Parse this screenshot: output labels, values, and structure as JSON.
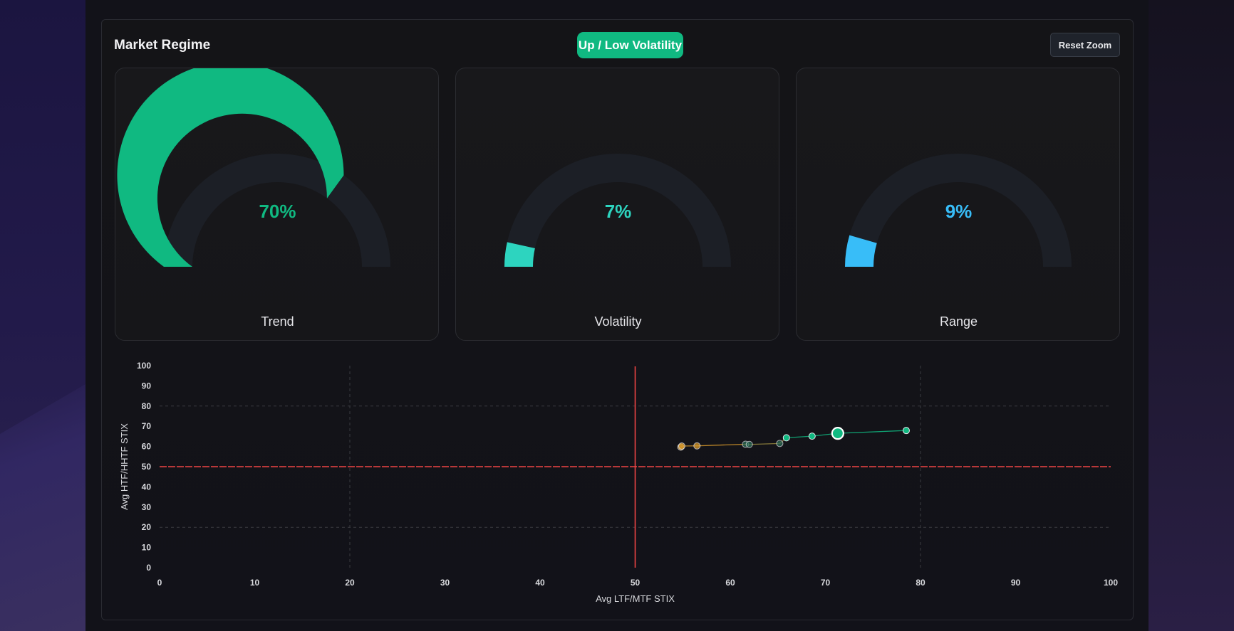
{
  "panel": {
    "title": "Market Regime",
    "regime_badge": "Up / Low Volatility",
    "reset_zoom_label": "Reset Zoom"
  },
  "gauges": [
    {
      "label": "Trend",
      "value": 70,
      "display": "70%",
      "color": "#10b981",
      "text_color": "#10b981"
    },
    {
      "label": "Volatility",
      "value": 7,
      "display": "7%",
      "color": "#2dd4bf",
      "text_color": "#2dd4bf"
    },
    {
      "label": "Range",
      "value": 9,
      "display": "9%",
      "color": "#38bdf8",
      "text_color": "#38bdf8"
    }
  ],
  "colors": {
    "gauge_track": "#1c1f26",
    "threshold_line": "#ef4444",
    "grid": "#3a3b40",
    "trail_early": "#d99a2b",
    "trail_late": "#10b981"
  },
  "chart_data": {
    "type": "scatter",
    "xlabel": "Avg LTF/MTF STIX",
    "ylabel": "Avg HTF/HHTF STIX",
    "xlim": [
      0,
      100
    ],
    "ylim": [
      0,
      100
    ],
    "x_ticks": [
      "0",
      "10",
      "20",
      "30",
      "40",
      "50",
      "60",
      "70",
      "80",
      "90",
      "100"
    ],
    "y_ticks": [
      "0",
      "10",
      "20",
      "30",
      "40",
      "50",
      "60",
      "70",
      "80",
      "90",
      "100"
    ],
    "x_gridlines": [
      20,
      80
    ],
    "y_gridlines": [
      20,
      80
    ],
    "threshold_x": 50,
    "threshold_y": 50,
    "series": [
      {
        "points": [
          {
            "x": 54.8,
            "y": 59.7,
            "tone": "early"
          },
          {
            "x": 54.9,
            "y": 60.2,
            "tone": "early"
          },
          {
            "x": 56.5,
            "y": 60.3,
            "tone": "early"
          },
          {
            "x": 61.6,
            "y": 61.1,
            "tone": "mid"
          },
          {
            "x": 62.0,
            "y": 61.0,
            "tone": "mid"
          },
          {
            "x": 65.2,
            "y": 61.5,
            "tone": "mid"
          },
          {
            "x": 65.9,
            "y": 64.3,
            "tone": "late"
          },
          {
            "x": 68.6,
            "y": 65.1,
            "tone": "late"
          },
          {
            "x": 71.3,
            "y": 66.5,
            "tone": "current"
          },
          {
            "x": 78.5,
            "y": 67.9,
            "tone": "late"
          }
        ]
      }
    ]
  }
}
